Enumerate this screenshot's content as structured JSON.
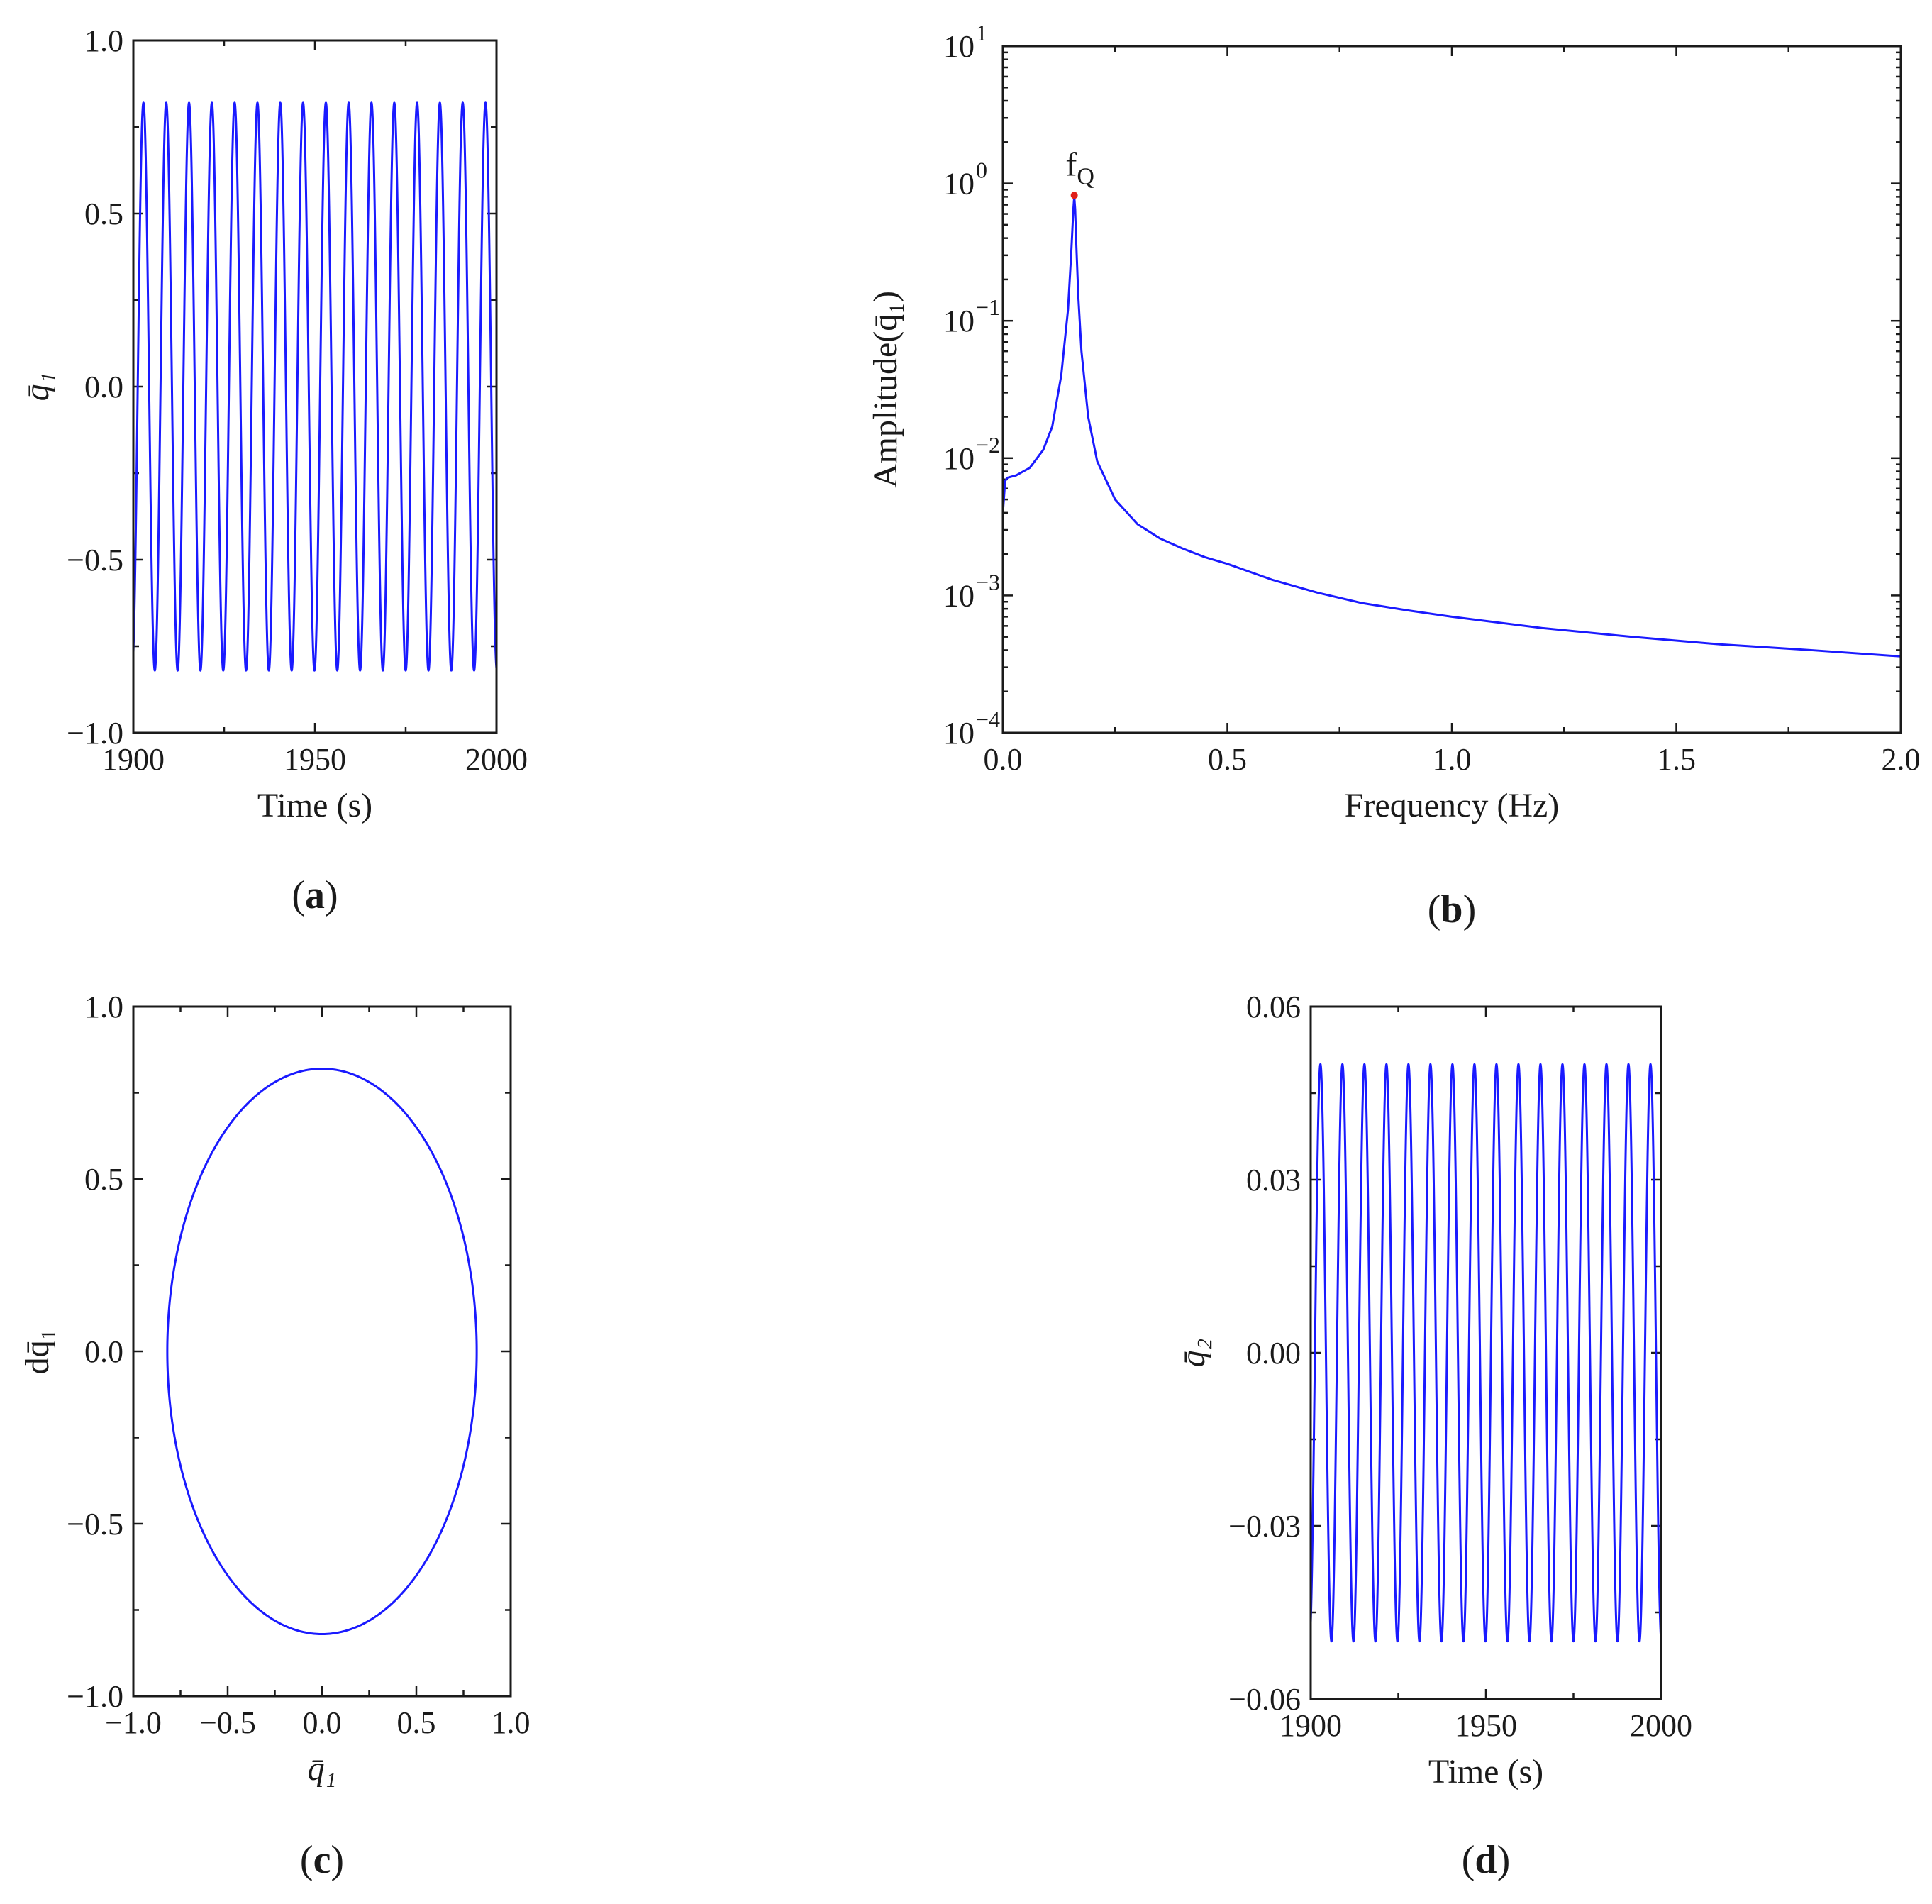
{
  "colors": {
    "series": "#1a1aff",
    "marker": "#e0201b",
    "axis": "#1a1a1a"
  },
  "chart_data": [
    {
      "id": "a",
      "type": "line",
      "panel_label": "a",
      "xlabel": "Time (s)",
      "ylabel": "q̄₁",
      "xlim": [
        1900,
        2000
      ],
      "ylim": [
        -1.0,
        1.0
      ],
      "xticks": [
        1900,
        1950,
        2000
      ],
      "xtick_labels": [
        "1900",
        "1950",
        "2000"
      ],
      "yticks": [
        -1.0,
        -0.5,
        0.0,
        0.5,
        1.0
      ],
      "ytick_labels": [
        "−1.0",
        "−0.5",
        "0.0",
        "0.5",
        "1.0"
      ],
      "signal": {
        "amplitude": 0.82,
        "period_s": 6.28,
        "t_start": 1900,
        "t_end": 2000
      }
    },
    {
      "id": "b",
      "type": "line",
      "panel_label": "b",
      "xlabel": "Frequency (Hz)",
      "ylabel": "Amplitude(q̄₁)",
      "xscale": "linear",
      "yscale": "log",
      "xlim": [
        0.0,
        2.0
      ],
      "ylim": [
        0.0001,
        10
      ],
      "xticks": [
        0.0,
        0.5,
        1.0,
        1.5,
        2.0
      ],
      "xtick_labels": [
        "0.0",
        "0.5",
        "1.0",
        "1.5",
        "2.0"
      ],
      "yticks": [
        0.0001,
        0.001,
        0.01,
        0.1,
        1,
        10
      ],
      "ytick_base": "10",
      "ytick_exponents": [
        "−4",
        "−3",
        "−2",
        "−1",
        "0",
        "1"
      ],
      "x": [
        0.0,
        0.005,
        0.01,
        0.03,
        0.06,
        0.09,
        0.11,
        0.13,
        0.145,
        0.152,
        0.157,
        0.159,
        0.161,
        0.163,
        0.168,
        0.175,
        0.19,
        0.21,
        0.25,
        0.3,
        0.35,
        0.4,
        0.45,
        0.5,
        0.6,
        0.7,
        0.8,
        0.9,
        1.0,
        1.2,
        1.4,
        1.6,
        1.8,
        2.0
      ],
      "y": [
        0.004,
        0.0068,
        0.0072,
        0.0075,
        0.0085,
        0.0115,
        0.017,
        0.04,
        0.12,
        0.3,
        0.65,
        0.8,
        0.65,
        0.4,
        0.15,
        0.06,
        0.02,
        0.0095,
        0.005,
        0.0033,
        0.0026,
        0.0022,
        0.0019,
        0.0017,
        0.0013,
        0.00105,
        0.00088,
        0.00078,
        0.0007,
        0.00058,
        0.0005,
        0.00044,
        0.0004,
        0.00036
      ],
      "peak": {
        "label": "f",
        "label_sub": "Q",
        "x": 0.159,
        "y": 0.82
      }
    },
    {
      "id": "c",
      "type": "line",
      "panel_label": "c",
      "xlabel": "q̄₁",
      "ylabel": "dq̄₁",
      "xlim": [
        -1.0,
        1.0
      ],
      "ylim": [
        -1.0,
        1.0
      ],
      "xticks": [
        -1.0,
        -0.5,
        0.0,
        0.5,
        1.0
      ],
      "xtick_labels": [
        "−1.0",
        "−0.5",
        "0.0",
        "0.5",
        "1.0"
      ],
      "yticks": [
        -1.0,
        -0.5,
        0.0,
        0.5,
        1.0
      ],
      "ytick_labels": [
        "−1.0",
        "−0.5",
        "0.0",
        "0.5",
        "1.0"
      ],
      "orbit": {
        "x_radius": 0.82,
        "y_radius": 0.82,
        "center": [
          0.0,
          0.0
        ]
      }
    },
    {
      "id": "d",
      "type": "line",
      "panel_label": "d",
      "xlabel": "Time (s)",
      "ylabel": "q̄₂",
      "xlim": [
        1900,
        2000
      ],
      "ylim": [
        -0.06,
        0.06
      ],
      "xticks": [
        1900,
        1950,
        2000
      ],
      "xtick_labels": [
        "1900",
        "1950",
        "2000"
      ],
      "yticks": [
        -0.06,
        -0.03,
        0.0,
        0.03,
        0.06
      ],
      "ytick_labels": [
        "−0.06",
        "−0.03",
        "0.00",
        "0.03",
        "0.06"
      ],
      "signal": {
        "amplitude": 0.05,
        "period_s": 6.28,
        "t_start": 1900,
        "t_end": 2000
      }
    }
  ]
}
